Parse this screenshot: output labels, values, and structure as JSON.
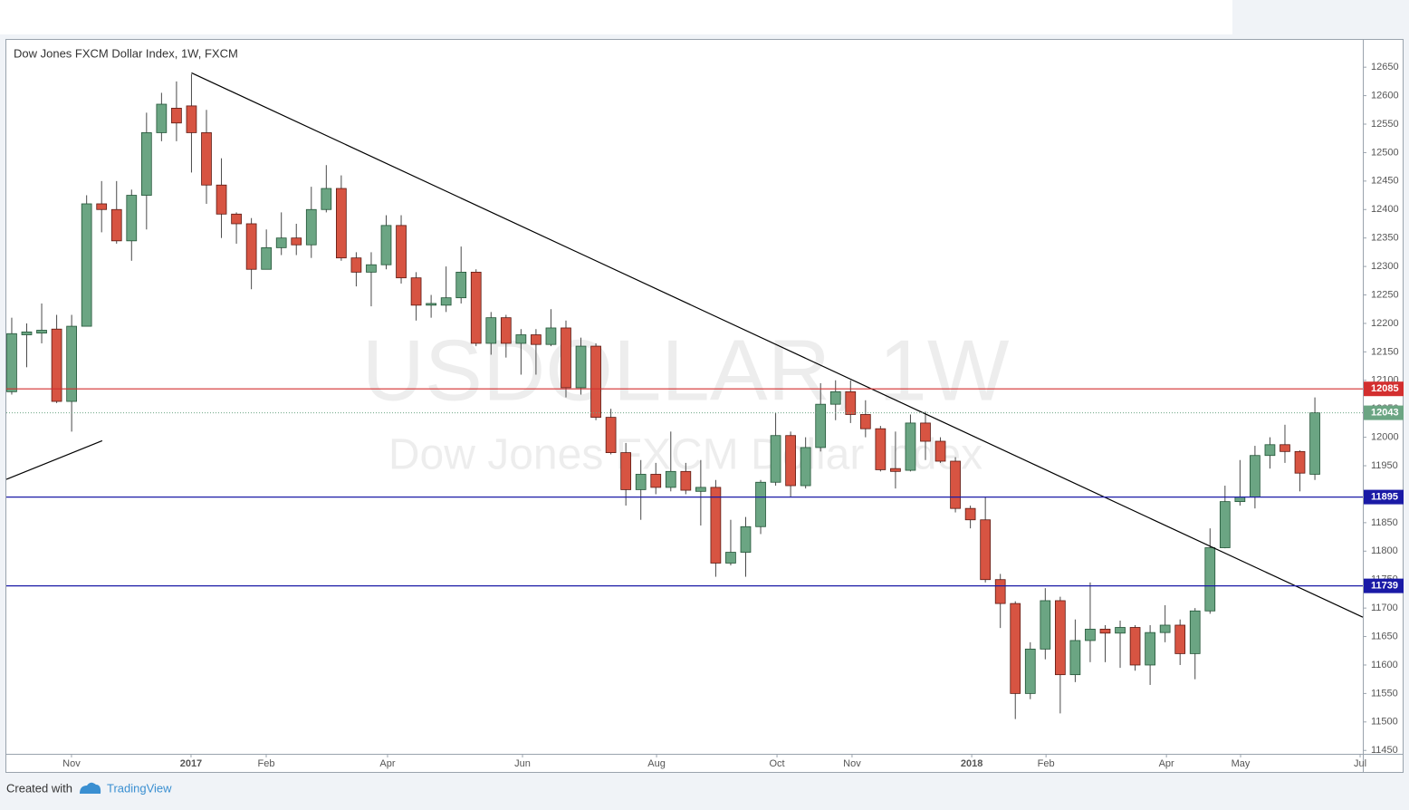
{
  "chart_data": {
    "type": "candlestick",
    "title": "Dow Jones FXCM Dollar Index, 1W, FXCM",
    "watermark": "USDOLLAR, 1W",
    "watermark_subtitle": "Dow Jones FXCM Dollar Index",
    "open": [
      12080,
      12180,
      12183,
      12190,
      12063,
      12195,
      12410,
      12400,
      12345,
      12425,
      12535,
      12578,
      12582,
      12535,
      12443,
      12392,
      12375,
      12295,
      12333,
      12350,
      12338,
      12400,
      12437,
      12315,
      12290,
      12303,
      12372,
      12280,
      12232,
      12232,
      12245,
      12290,
      12165,
      12210,
      12165,
      12180,
      12163,
      12192,
      12087,
      12160,
      12035,
      11973,
      11908,
      11935,
      11912,
      11940,
      11905,
      11912,
      11779,
      11798,
      11843,
      11921,
      12003,
      11915,
      11982,
      12058,
      12080,
      12040,
      12015,
      11945,
      11942,
      12025,
      11993,
      11958,
      11875,
      11855,
      11750,
      11708,
      11550,
      11628,
      11713,
      11583,
      11643,
      11663,
      11656,
      11666,
      11600,
      11657,
      11670,
      11620,
      11695,
      11806,
      11887,
      11895,
      11968,
      11987,
      11975,
      11935
    ],
    "high": [
      12210,
      12200,
      12235,
      12215,
      12215,
      12425,
      12450,
      12450,
      12435,
      12570,
      12605,
      12625,
      12638,
      12575,
      12490,
      12395,
      12385,
      12365,
      12395,
      12375,
      12440,
      12478,
      12460,
      12325,
      12325,
      12390,
      12390,
      12290,
      12250,
      12300,
      12335,
      12295,
      12220,
      12215,
      12190,
      12190,
      12225,
      12205,
      12175,
      12165,
      12050,
      11990,
      11960,
      11955,
      12010,
      11955,
      11960,
      11925,
      11855,
      11860,
      11925,
      12043,
      12010,
      12000,
      12095,
      12100,
      12100,
      12065,
      12020,
      12010,
      12040,
      12045,
      12000,
      11965,
      11880,
      11895,
      11760,
      11712,
      11640,
      11735,
      11720,
      11680,
      11745,
      11670,
      11678,
      11670,
      11670,
      11705,
      11680,
      11700,
      11840,
      11915,
      11960,
      11985,
      12000,
      12022,
      11977,
      12070
    ],
    "low": [
      12075,
      12123,
      12165,
      12060,
      12010,
      12195,
      12360,
      12340,
      12310,
      12365,
      12520,
      12520,
      12465,
      12410,
      12350,
      12340,
      12260,
      12295,
      12320,
      12320,
      12315,
      12395,
      12310,
      12265,
      12230,
      12295,
      12270,
      12205,
      12210,
      12220,
      12235,
      12160,
      12145,
      12140,
      12110,
      12110,
      12160,
      12070,
      12075,
      12030,
      11970,
      11880,
      11855,
      11900,
      11905,
      11900,
      11845,
      11755,
      11775,
      11755,
      11830,
      11915,
      11895,
      11910,
      11975,
      12030,
      12025,
      12000,
      11940,
      11910,
      11940,
      11960,
      11955,
      11868,
      11840,
      11745,
      11665,
      11505,
      11540,
      11610,
      11515,
      11570,
      11605,
      11605,
      11595,
      11590,
      11565,
      11640,
      11600,
      11575,
      11690,
      11805,
      11880,
      11875,
      11945,
      11955,
      11905,
      11925
    ],
    "close": [
      12182,
      12185,
      12188,
      12063,
      12195,
      12410,
      12400,
      12345,
      12425,
      12535,
      12585,
      12552,
      12535,
      12443,
      12392,
      12375,
      12295,
      12333,
      12350,
      12338,
      12400,
      12437,
      12315,
      12290,
      12303,
      12372,
      12280,
      12232,
      12235,
      12245,
      12290,
      12165,
      12210,
      12165,
      12180,
      12163,
      12192,
      12087,
      12160,
      12035,
      11973,
      11908,
      11935,
      11912,
      11940,
      11907,
      11912,
      11779,
      11798,
      11843,
      11921,
      12003,
      11915,
      11982,
      12058,
      12080,
      12040,
      12015,
      11943,
      11940,
      12025,
      11993,
      11958,
      11875,
      11855,
      11750,
      11708,
      11550,
      11628,
      11713,
      11583,
      11643,
      11663,
      11656,
      11666,
      11600,
      11657,
      11670,
      11620,
      11695,
      11806,
      11887,
      11895,
      11968,
      11987,
      11975,
      11937,
      12043
    ],
    "up_color": "#6ba583",
    "down_color": "#d75442",
    "xlim": [
      -0.36,
      90.2
    ],
    "xticks": [
      {
        "value": 3.99,
        "label": "Nov"
      },
      {
        "value": 11.97,
        "label": "2017"
      },
      {
        "value": 16.99,
        "label": "Feb"
      },
      {
        "value": 25.09,
        "label": "Apr"
      },
      {
        "value": 34.1,
        "label": "Jun"
      },
      {
        "value": 43.05,
        "label": "Aug"
      },
      {
        "value": 51.09,
        "label": "Oct"
      },
      {
        "value": 56.1,
        "label": "Nov"
      },
      {
        "value": 64.09,
        "label": "2018"
      },
      {
        "value": 69.05,
        "label": "Feb"
      },
      {
        "value": 77.09,
        "label": "Apr"
      },
      {
        "value": 82.04,
        "label": "May"
      },
      {
        "value": 90.02,
        "label": "Jul"
      }
    ],
    "ylim": [
      11444,
      12698
    ],
    "yticks": [
      11450,
      11500,
      11550,
      11600,
      11650,
      11700,
      11750,
      11800,
      11850,
      11900,
      11950,
      12000,
      12050,
      12100,
      12150,
      12200,
      12250,
      12300,
      12350,
      12400,
      12450,
      12500,
      12550,
      12600,
      12650
    ],
    "levels": [
      {
        "value": 12085,
        "color": "#d32f2f"
      },
      {
        "value": 12043,
        "color": "#6ba583",
        "dashed": true
      },
      {
        "value": 11895,
        "color": "#1a1aa6"
      },
      {
        "value": 11739,
        "color": "#1a1aa6"
      }
    ],
    "trendlines": [
      {
        "x": [
          12,
          90.2
        ],
        "y": [
          12640,
          11684
        ]
      },
      {
        "x": [
          -0.36,
          6.04
        ],
        "y": [
          11926,
          11994
        ]
      }
    ],
    "footer": "Created with",
    "brand": "TradingView"
  }
}
